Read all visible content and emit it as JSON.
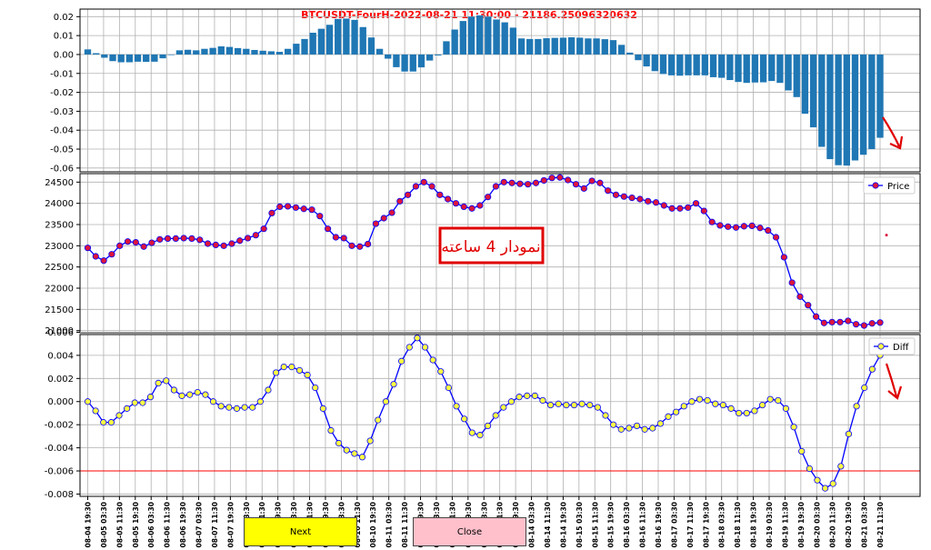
{
  "title": "BTCUSDT-FourH-2022-08-21 11:30:00 - 21186.25096320632",
  "colors": {
    "title": "#ff0000",
    "bars": "#1f77b4",
    "price_line": "#0000ff",
    "price_marker": "#dc143c",
    "diff_line": "#0000ff",
    "diff_marker": "#ffff44",
    "threshold": "#ff0000",
    "annotation": "#e00000",
    "next_button": "#ffff00",
    "close_button": "#ffc0cb"
  },
  "annotation": "نمودار 4 ساعته",
  "buttons": {
    "next": "Next",
    "close": "Close"
  },
  "chart_data": [
    {
      "type": "bar",
      "ylim": [
        -0.062,
        0.024
      ],
      "yticks": [
        "0.02",
        "0.01",
        "0.00",
        "-0.01",
        "-0.02",
        "-0.03",
        "-0.04",
        "-0.05",
        "-0.06"
      ],
      "ytick_values": [
        0.02,
        0.01,
        0.0,
        -0.01,
        -0.02,
        -0.03,
        -0.04,
        -0.05,
        -0.06
      ],
      "values": [
        0.0027,
        0.0007,
        -0.0017,
        -0.0035,
        -0.0041,
        -0.0041,
        -0.0038,
        -0.0039,
        -0.0038,
        -0.002,
        0.0,
        0.0022,
        0.0025,
        0.0022,
        0.003,
        0.0035,
        0.0043,
        0.004,
        0.0034,
        0.003,
        0.0024,
        0.002,
        0.0017,
        0.0014,
        0.003,
        0.0057,
        0.0082,
        0.0115,
        0.0136,
        0.0157,
        0.0188,
        0.019,
        0.0183,
        0.0145,
        0.009,
        0.003,
        -0.0022,
        -0.0067,
        -0.009,
        -0.009,
        -0.0068,
        -0.0032,
        -0.0005,
        0.007,
        0.0132,
        0.0177,
        0.02,
        0.0207,
        0.02,
        0.0185,
        0.017,
        0.0142,
        0.0085,
        0.0082,
        0.0082,
        0.0086,
        0.0088,
        0.0089,
        0.0091,
        0.0089,
        0.0085,
        0.0085,
        0.0081,
        0.0076,
        0.0051,
        0.001,
        -0.003,
        -0.0063,
        -0.0088,
        -0.0103,
        -0.011,
        -0.0112,
        -0.011,
        -0.011,
        -0.011,
        -0.012,
        -0.0123,
        -0.0135,
        -0.0145,
        -0.015,
        -0.0148,
        -0.0147,
        -0.014,
        -0.015,
        -0.019,
        -0.0225,
        -0.0313,
        -0.0385,
        -0.0488,
        -0.0553,
        -0.0585,
        -0.0587,
        -0.056,
        -0.053,
        -0.05,
        -0.044
      ]
    },
    {
      "type": "line",
      "legend": "Price",
      "legend_position": "top-right",
      "ylim": [
        20950,
        24700
      ],
      "yticks": [
        "24500",
        "24000",
        "23500",
        "23000",
        "22500",
        "22000",
        "21500",
        "21000"
      ],
      "ytick_values": [
        24500,
        24000,
        23500,
        23000,
        22500,
        22000,
        21500,
        21000
      ],
      "values": [
        22950,
        22750,
        22650,
        22800,
        23000,
        23100,
        23080,
        22980,
        23070,
        23150,
        23170,
        23170,
        23180,
        23170,
        23140,
        23050,
        23020,
        23000,
        23050,
        23120,
        23180,
        23250,
        23400,
        23770,
        23920,
        23930,
        23900,
        23870,
        23850,
        23700,
        23400,
        23200,
        23180,
        23000,
        22980,
        23040,
        23520,
        23650,
        23780,
        24050,
        24200,
        24400,
        24500,
        24400,
        24200,
        24100,
        24000,
        23920,
        23880,
        23950,
        24150,
        24400,
        24500,
        24480,
        24460,
        24450,
        24480,
        24540,
        24600,
        24610,
        24550,
        24450,
        24350,
        24530,
        24480,
        24300,
        24200,
        24160,
        24130,
        24100,
        24050,
        24020,
        23950,
        23880,
        23880,
        23900,
        24000,
        23820,
        23560,
        23480,
        23450,
        23430,
        23460,
        23470,
        23420,
        23360,
        23200,
        22730,
        22130,
        21800,
        21600,
        21330,
        21180,
        21200,
        21200,
        21230,
        21150,
        21120,
        21170,
        21190
      ],
      "outlier": {
        "index": 99.8,
        "value": 23250
      }
    },
    {
      "type": "line",
      "legend": "Diff",
      "legend_position": "top-right",
      "ylim": [
        -0.0082,
        0.0058
      ],
      "yticks": [
        "0.006",
        "0.004",
        "0.002",
        "0.000",
        "-0.002",
        "-0.004",
        "-0.006",
        "-0.008"
      ],
      "ytick_values": [
        0.006,
        0.004,
        0.002,
        0.0,
        -0.002,
        -0.004,
        -0.006,
        -0.008
      ],
      "threshold": -0.006,
      "values": [
        0.0,
        -0.0008,
        -0.0018,
        -0.0018,
        -0.0012,
        -0.0006,
        -0.0001,
        -0.0001,
        0.0004,
        0.0016,
        0.0018,
        0.001,
        0.0005,
        0.0006,
        0.0008,
        0.0006,
        0.0,
        -0.0004,
        -0.0005,
        -0.0006,
        -0.0005,
        -0.0005,
        0.0,
        0.001,
        0.0025,
        0.003,
        0.003,
        0.0027,
        0.0023,
        0.0012,
        -0.0006,
        -0.0025,
        -0.0036,
        -0.0042,
        -0.0045,
        -0.0048,
        -0.0034,
        -0.0016,
        0.0,
        0.0015,
        0.0035,
        0.0047,
        0.0055,
        0.0047,
        0.0036,
        0.0026,
        0.0012,
        -0.0004,
        -0.0015,
        -0.0027,
        -0.0029,
        -0.0021,
        -0.0012,
        -0.0005,
        0.0,
        0.0004,
        0.0005,
        0.0005,
        0.0001,
        -0.0003,
        -0.0002,
        -0.0003,
        -0.0003,
        -0.0002,
        -0.0003,
        -0.0005,
        -0.0012,
        -0.002,
        -0.0024,
        -0.0023,
        -0.0021,
        -0.0024,
        -0.0023,
        -0.0019,
        -0.0013,
        -0.0009,
        -0.0004,
        0.0,
        0.0002,
        0.0001,
        -0.0002,
        -0.0003,
        -0.0006,
        -0.001,
        -0.001,
        -0.0008,
        -0.0003,
        0.0002,
        0.0001,
        -0.0006,
        -0.0022,
        -0.0043,
        -0.0058,
        -0.0068,
        -0.0075,
        -0.0071,
        -0.0056,
        -0.0028,
        -0.0004,
        0.0012,
        0.0028,
        0.004
      ]
    }
  ],
  "x_ticks": [
    "08-04 19:30",
    "08-05 03:30",
    "08-05 11:30",
    "08-05 19:30",
    "08-06 03:30",
    "08-06 11:30",
    "08-06 19:30",
    "08-07 03:30",
    "08-07 11:30",
    "08-07 19:30",
    "08-08 03:30",
    "08-08 11:30",
    "08-08 19:30",
    "08-09 03:30",
    "08-09 11:30",
    "08-09 19:30",
    "08-10 03:30",
    "08-10 11:30",
    "08-10 19:30",
    "08-11 03:30",
    "08-11 11:30",
    "08-11 19:30",
    "08-12 03:30",
    "08-12 11:30",
    "08-12 19:30",
    "08-13 03:30",
    "08-13 11:30",
    "08-13 19:30",
    "08-14 03:30",
    "08-14 11:30",
    "08-14 19:30",
    "08-15 03:30",
    "08-15 11:30",
    "08-15 19:30",
    "08-16 03:30",
    "08-16 11:30",
    "08-16 19:30",
    "08-17 03:30",
    "08-17 11:30",
    "08-17 19:30",
    "08-18 03:30",
    "08-18 11:30",
    "08-18 19:30",
    "08-19 03:30",
    "08-19 11:30",
    "08-19 19:30",
    "08-20 03:30",
    "08-20 11:30",
    "08-20 19:30",
    "08-21 03:30",
    "08-21 11:30"
  ]
}
